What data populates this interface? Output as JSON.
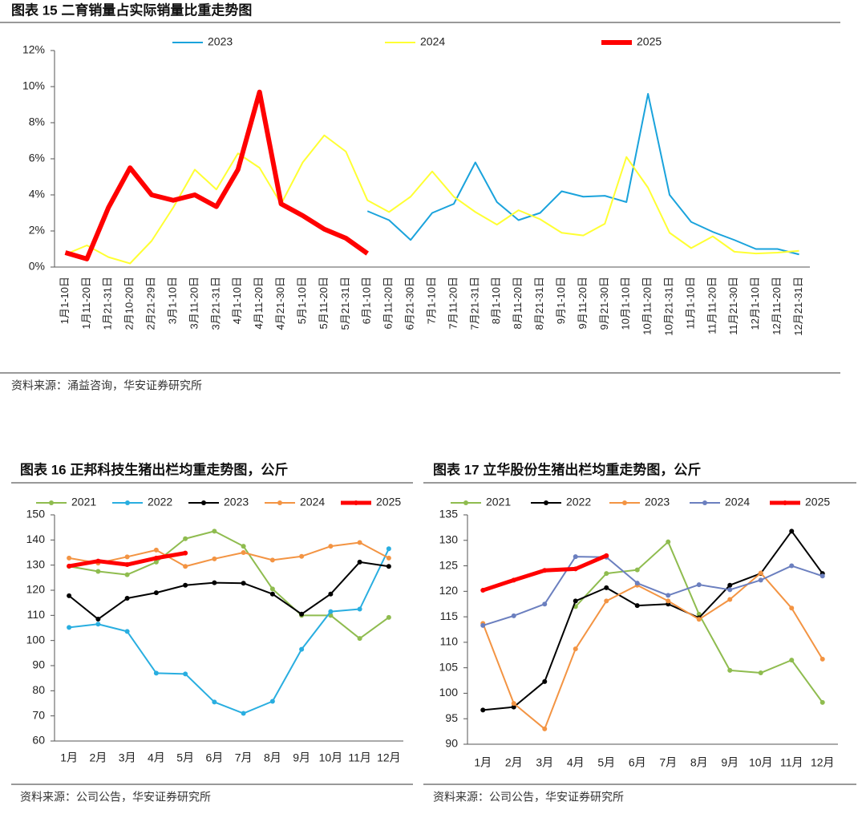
{
  "chart_data": [
    {
      "type": "line",
      "title": "图表 15 二育销量占实际销量比重走势图",
      "source": "资料来源：涌益咨询，华安证券研究所",
      "categories": [
        "1月1-10日",
        "1月11-20日",
        "1月21-31日",
        "2月10-20日",
        "2月21-29日",
        "3月1-10日",
        "3月11-20日",
        "3月21-31日",
        "4月1-10日",
        "4月11-20日",
        "4月21-30日",
        "5月1-10日",
        "5月11-20日",
        "5月21-31日",
        "6月1-10日",
        "6月11-20日",
        "6月21-30日",
        "7月1-10日",
        "7月11-20日",
        "7月21-31日",
        "8月1-10日",
        "8月11-20日",
        "8月21-31日",
        "9月1-10日",
        "9月11-20日",
        "9月21-30日",
        "10月1-10日",
        "10月11-20日",
        "10月21-31日",
        "11月1-10日",
        "11月11-20日",
        "11月21-30日",
        "12月1-10日",
        "12月11-20日",
        "12月21-31日"
      ],
      "series": [
        {
          "name": "2023",
          "color": "#1aa3dc",
          "line_width": 2,
          "values": [
            null,
            null,
            null,
            null,
            null,
            null,
            null,
            null,
            null,
            null,
            null,
            null,
            null,
            null,
            3.1,
            2.6,
            1.5,
            3.0,
            3.5,
            5.8,
            3.6,
            2.6,
            3.0,
            4.2,
            3.9,
            3.95,
            3.6,
            9.6,
            4.0,
            2.5,
            1.95,
            1.5,
            1.0,
            1.0,
            0.7
          ]
        },
        {
          "name": "2024",
          "color": "#ffff33",
          "line_width": 2,
          "values": [
            0.7,
            1.2,
            0.55,
            0.2,
            1.45,
            3.3,
            5.4,
            4.3,
            6.3,
            5.5,
            3.5,
            5.8,
            7.3,
            6.4,
            3.7,
            3.05,
            3.9,
            5.3,
            3.9,
            3.05,
            2.35,
            3.15,
            2.65,
            1.9,
            1.75,
            2.4,
            6.1,
            4.4,
            1.9,
            1.05,
            1.7,
            0.85,
            0.75,
            0.8,
            0.9
          ]
        },
        {
          "name": "2025",
          "color": "#ff0000",
          "line_width": 6,
          "values": [
            0.8,
            0.45,
            3.3,
            5.5,
            4.0,
            3.7,
            4.0,
            3.35,
            5.4,
            9.7,
            3.5,
            2.85,
            2.1,
            1.6,
            0.75,
            null,
            null,
            null,
            null,
            null,
            null,
            null,
            null,
            null,
            null,
            null,
            null,
            null,
            null,
            null,
            null,
            null,
            null,
            null,
            null
          ]
        }
      ],
      "ylim": [
        0,
        12
      ],
      "yticks": [
        {
          "value": 0,
          "label": "0%"
        },
        {
          "value": 2,
          "label": "2%"
        },
        {
          "value": 4,
          "label": "4%"
        },
        {
          "value": 6,
          "label": "6%"
        },
        {
          "value": 8,
          "label": "8%"
        },
        {
          "value": 10,
          "label": "10%"
        },
        {
          "value": 12,
          "label": "12%"
        }
      ],
      "markers": false
    },
    {
      "type": "line",
      "title": "图表 16 正邦科技生猪出栏均重走势图，公斤",
      "source": "资料来源：公司公告，华安证券研究所",
      "categories": [
        "1月",
        "2月",
        "3月",
        "4月",
        "5月",
        "6月",
        "7月",
        "8月",
        "9月",
        "10月",
        "11月",
        "12月"
      ],
      "series": [
        {
          "name": "2021",
          "color": "#8fbc4f",
          "line_width": 2,
          "values": [
            129.5,
            127.5,
            126.2,
            131.2,
            140.5,
            143.5,
            137.5,
            120.5,
            110,
            110,
            100.8,
            109.2
          ]
        },
        {
          "name": "2022",
          "color": "#29aee0",
          "line_width": 2,
          "values": [
            105.2,
            106.5,
            103.6,
            87,
            86.7,
            75.5,
            71,
            75.8,
            96.5,
            111.5,
            112.5,
            136.5
          ]
        },
        {
          "name": "2023",
          "color": "#000000",
          "line_width": 2,
          "values": [
            117.8,
            108.5,
            116.8,
            119,
            122,
            123,
            122.8,
            118.5,
            110.5,
            118.5,
            131.2,
            129.5
          ]
        },
        {
          "name": "2024",
          "color": "#f39443",
          "line_width": 2,
          "values": [
            132.8,
            130.8,
            133.3,
            136,
            129.5,
            132.5,
            135,
            132,
            133.5,
            137.5,
            139,
            132.8
          ]
        },
        {
          "name": "2025",
          "color": "#ff0000",
          "line_width": 5,
          "values": [
            129.6,
            131.6,
            130.2,
            132.8,
            134.8,
            null,
            null,
            null,
            null,
            null,
            null,
            null
          ]
        }
      ],
      "ylim": [
        60,
        150
      ],
      "yticks": [
        60,
        70,
        80,
        90,
        100,
        110,
        120,
        130,
        140,
        150
      ],
      "markers": true
    },
    {
      "type": "line",
      "title": "图表 17 立华股份生猪出栏均重走势图，公斤",
      "source": "资料来源：公司公告，华安证券研究所",
      "categories": [
        "1月",
        "2月",
        "3月",
        "4月",
        "5月",
        "6月",
        "7月",
        "8月",
        "9月",
        "10月",
        "11月",
        "12月"
      ],
      "series": [
        {
          "name": "2021",
          "color": "#8fbc4f",
          "line_width": 2,
          "values": [
            null,
            null,
            null,
            117,
            123.5,
            124.2,
            129.7,
            115.5,
            104.5,
            104,
            106.5,
            98.2
          ]
        },
        {
          "name": "2022",
          "color": "#000000",
          "line_width": 2,
          "values": [
            96.7,
            97.3,
            102.3,
            118.1,
            120.7,
            117.2,
            117.5,
            114.8,
            121.2,
            123.5,
            131.8,
            123.5
          ]
        },
        {
          "name": "2023",
          "color": "#f39443",
          "line_width": 2,
          "values": [
            113.7,
            98,
            93,
            108.7,
            118.1,
            121.2,
            118.1,
            114.5,
            118.4,
            123.6,
            116.7,
            106.7
          ]
        },
        {
          "name": "2024",
          "color": "#6b7fbf",
          "line_width": 2,
          "values": [
            113.3,
            115.2,
            117.5,
            126.8,
            126.7,
            121.6,
            119.2,
            121.3,
            120.3,
            122.2,
            125,
            123
          ]
        },
        {
          "name": "2025",
          "color": "#ff0000",
          "line_width": 5,
          "values": [
            120.2,
            122.2,
            124.1,
            124.4,
            127,
            null,
            null,
            null,
            null,
            null,
            null,
            null
          ]
        }
      ],
      "ylim": [
        90,
        135
      ],
      "yticks": [
        90,
        95,
        100,
        105,
        110,
        115,
        120,
        125,
        130,
        135
      ],
      "markers": true
    }
  ]
}
